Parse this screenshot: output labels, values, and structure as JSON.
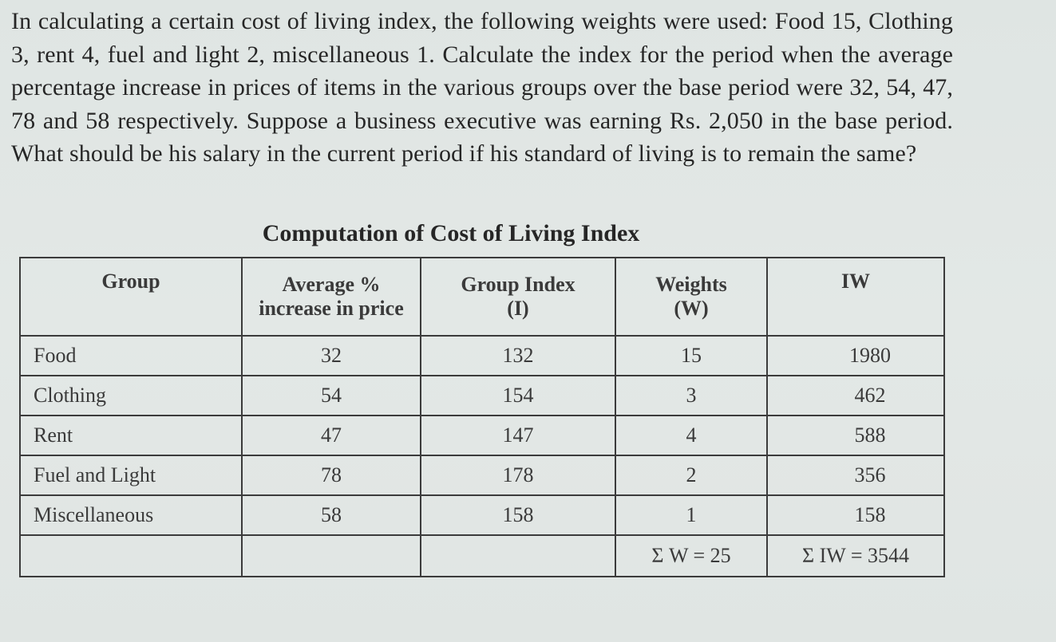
{
  "question": "In calculating a certain cost of living index, the following weights were used: Food 15, Clothing 3, rent 4, fuel and light 2, miscellaneous 1. Calculate the index for the period when the average percentage increase in prices of items in the various groups over the base period were 32, 54, 47, 78 and 58 respectively. Suppose a business executive was earning Rs. 2,050 in the base period. What should be his salary in the current period if his standard of living is to remain the same?",
  "table": {
    "title": "Computation of Cost of Living Index",
    "headers": {
      "group": "Group",
      "avg_increase_line1": "Average %",
      "avg_increase_line2": "increase in price",
      "group_index_line1": "Group Index",
      "group_index_line2": "(I)",
      "weights_line1": "Weights",
      "weights_line2": "(W)",
      "iw": "IW"
    },
    "rows": [
      {
        "group": "Food",
        "increase": "32",
        "index": "132",
        "weight": "15",
        "iw": "1980"
      },
      {
        "group": "Clothing",
        "increase": "54",
        "index": "154",
        "weight": "3",
        "iw": "462"
      },
      {
        "group": "Rent",
        "increase": "47",
        "index": "147",
        "weight": "4",
        "iw": "588"
      },
      {
        "group": "Fuel and Light",
        "increase": "78",
        "index": "178",
        "weight": "2",
        "iw": "356"
      },
      {
        "group": "Miscellaneous",
        "increase": "58",
        "index": "158",
        "weight": "1",
        "iw": "158"
      }
    ],
    "totals": {
      "weights": "Σ W = 25",
      "iw": "Σ IW = 3544"
    }
  }
}
